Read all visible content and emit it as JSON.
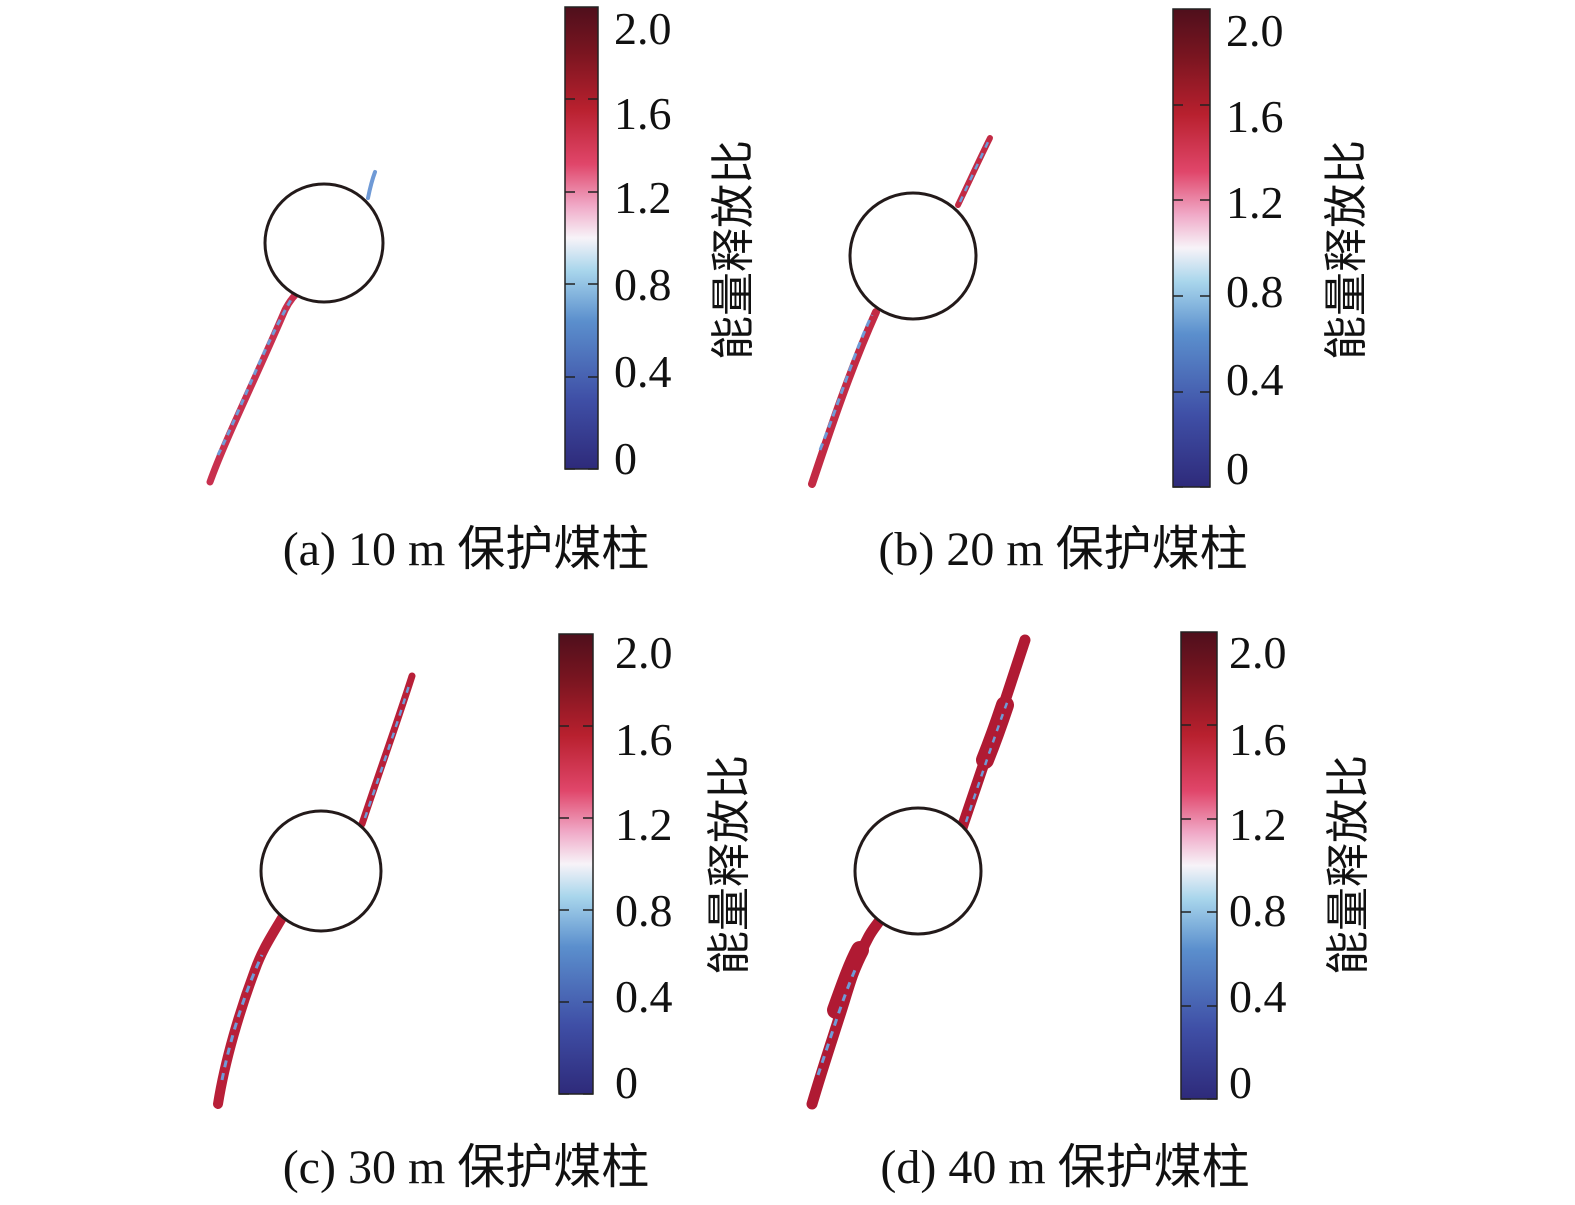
{
  "figure": {
    "colorbar": {
      "title": "能量释放比",
      "ticks": [
        "0",
        "0.4",
        "0.8",
        "1.2",
        "1.6",
        "2.0"
      ],
      "range": [
        0,
        2.0
      ],
      "colors": [
        "#2e2a7a",
        "#3f4fa6",
        "#5b8fcd",
        "#a9d6ec",
        "#f7f3f8",
        "#f0a9c7",
        "#e0466a",
        "#b8202e",
        "#7a1520",
        "#4f0f1c"
      ]
    },
    "panels": [
      {
        "caption": "(a) 10 m 保护煤柱",
        "crack_color": "#c8304e",
        "mixed_color": "#6f9ad6"
      },
      {
        "caption": "(b) 20 m 保护煤柱",
        "crack_color": "#c22a44",
        "mixed_color": "#6f9ad6"
      },
      {
        "caption": "(c) 30 m 保护煤柱",
        "crack_color": "#b81f38",
        "mixed_color": "#6f9ad6"
      },
      {
        "caption": "(d) 40 m 保护煤柱",
        "crack_color": "#b01a33",
        "mixed_color": "#6f9ad6"
      }
    ]
  }
}
